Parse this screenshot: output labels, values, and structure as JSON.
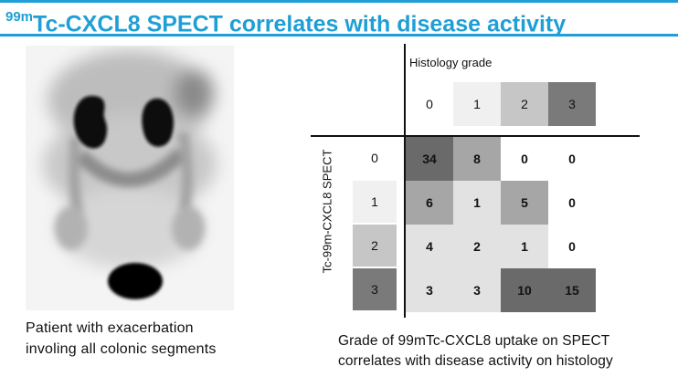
{
  "title": {
    "sup": "99m",
    "main": "Tc-CXCL8 SPECT correlates with disease activity"
  },
  "caption_left": [
    "Patient with exacerbation",
    "involing all colonic segments"
  ],
  "caption_right": [
    "Grade of 99mTc-CXCL8 uptake on SPECT",
    "correlates with disease activity on histology"
  ],
  "table": {
    "col_axis_label": "Histology grade",
    "row_axis_label": "Tc-99m-CXCL8 SPECT",
    "col_headers": [
      "0",
      "1",
      "2",
      "3"
    ],
    "row_headers": [
      "0",
      "1",
      "2",
      "3"
    ],
    "cells": [
      [
        "34",
        "8",
        "0",
        "0"
      ],
      [
        "6",
        "1",
        "5",
        "0"
      ],
      [
        "4",
        "2",
        "1",
        "0"
      ],
      [
        "3",
        "3",
        "10",
        "15"
      ]
    ]
  },
  "colors": {
    "title": "#1f9fd6",
    "grade_0": "#ffffff",
    "grade_1": "#f0f0f0",
    "grade_2": "#c6c6c6",
    "grade_3": "#7a7a7a",
    "cell_light": "#e2e2e2",
    "cell_mid": "#a6a6a6",
    "cell_dark": "#6a6a6a"
  }
}
